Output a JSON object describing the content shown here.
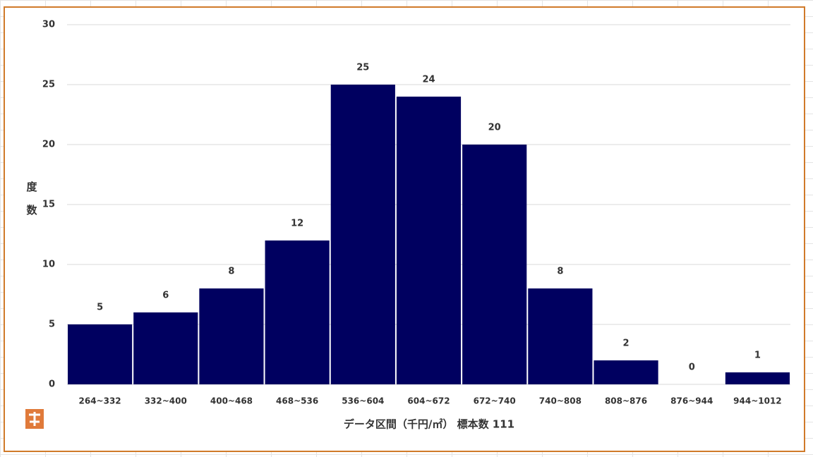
{
  "chart_data": {
    "type": "bar",
    "categories": [
      "264~332",
      "332~400",
      "400~468",
      "468~536",
      "536~604",
      "604~672",
      "672~740",
      "740~808",
      "808~876",
      "876~944",
      "944~1012"
    ],
    "values": [
      5,
      6,
      8,
      12,
      25,
      24,
      20,
      8,
      2,
      0,
      1
    ],
    "color": "#000060",
    "ylim": [
      0,
      30
    ],
    "yticks": [
      0,
      5,
      10,
      15,
      20,
      25,
      30
    ],
    "grid": true,
    "y_label": "度数",
    "x_label": "データ区間（千円/㎡） 標本数 111"
  }
}
